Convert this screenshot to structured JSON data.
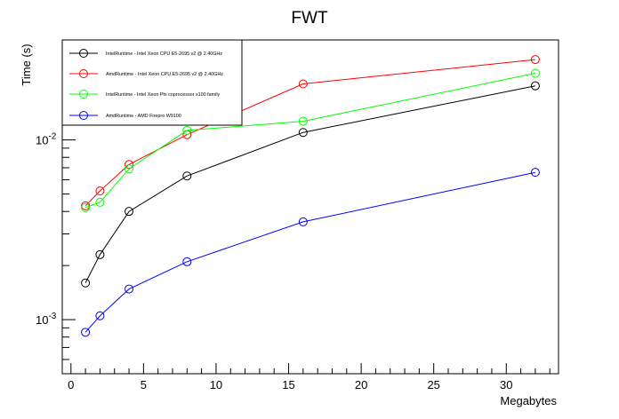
{
  "chart_data": {
    "type": "line",
    "title": "FWT",
    "xlabel": "Megabytes",
    "ylabel": "Time (s)",
    "xlim": [
      -0.6,
      33.6
    ],
    "ylim": [
      0.0005,
      0.036
    ],
    "yscale": "log",
    "grid": false,
    "legend_position": "top-left",
    "x_ticks": [
      0,
      5,
      10,
      15,
      20,
      25,
      30
    ],
    "x_tick_labels": [
      "0",
      "5",
      "10",
      "15",
      "20",
      "25",
      "30"
    ],
    "y_major_ticks": [
      0.001,
      0.01
    ],
    "y_tick_labels": [
      "10^-3",
      "10^-2"
    ],
    "y_tick_base": "10",
    "y_tick_exponents": [
      "-3",
      "-2"
    ],
    "series": [
      {
        "name": "IntelRuntime - Intel Xeon CPU E5-2695 v2 @ 2.40GHz",
        "color": "#000000",
        "x": [
          1,
          2,
          4,
          8,
          16,
          32
        ],
        "y": [
          0.0016,
          0.0023,
          0.004,
          0.0063,
          0.011,
          0.02
        ]
      },
      {
        "name": "AmdRuntime - Intel Xeon CPU E5-2695 v2 @ 2.40GHz",
        "color": "#ff0000",
        "x": [
          1,
          2,
          4,
          8,
          16,
          32
        ],
        "y": [
          0.0043,
          0.0052,
          0.0073,
          0.0107,
          0.0205,
          0.028
        ]
      },
      {
        "name": "IntelRuntime - Intel Xeon Phi coprocessor x100 family",
        "color": "#00ff00",
        "x": [
          1,
          2,
          4,
          8,
          16,
          32
        ],
        "y": [
          0.0042,
          0.0045,
          0.0069,
          0.0113,
          0.0127,
          0.0235
        ]
      },
      {
        "name": "AmdRuntime - AMD Firepro W9100",
        "color": "#0000ff",
        "x": [
          1,
          2,
          4,
          8,
          16,
          32
        ],
        "y": [
          0.00085,
          0.00105,
          0.00148,
          0.0021,
          0.0035,
          0.0066
        ]
      }
    ]
  }
}
